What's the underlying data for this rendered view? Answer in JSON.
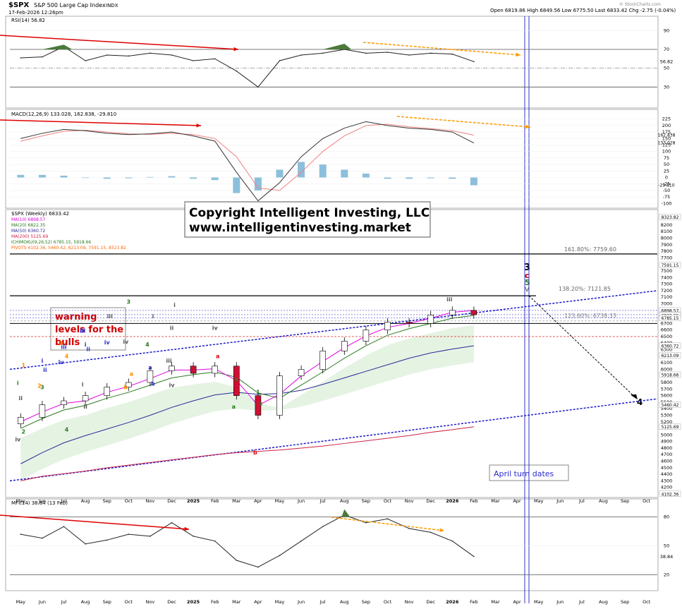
{
  "header": {
    "symbol": "$SPX",
    "name": "S&P 500 Large Cap Index",
    "exchange": "INDX",
    "datetime": "17-Feb-2026 12:26pm",
    "quote": "Open 6819.86  High 6849.56  Low 6775.50  Last 6833.42  Chg -2.75 (-0.04%)",
    "brand": "© StockCharts.com"
  },
  "copyright": {
    "line1": "Copyright Intelligent Investing, LLC",
    "line2": "www.intelligentinvesting.market"
  },
  "annotations": {
    "warning_lines": [
      "warning",
      "levels for the",
      "bulls"
    ],
    "april": "April turn dates",
    "fib_1618": "161.80%: 7759.60",
    "fib_1382": "138.20%: 7121.85",
    "fib_1236": "123.60%: 6738.33",
    "wave_stack": [
      {
        "text": "3",
        "color": "#000000"
      },
      {
        "text": "c",
        "color": "#d40000"
      },
      {
        "text": "5",
        "color": "#2a7a1e"
      },
      {
        "text": "v",
        "color": "#555555"
      }
    ],
    "wave_four": "4"
  },
  "colors": {
    "price_up": "#ffffff",
    "price_down": "#cc1133",
    "ma10": "#e000e0",
    "ma20": "#2a7a1e",
    "ma50": "#2a2a9a",
    "ma200": "#cc2244",
    "cloud": "#dff0dc",
    "channel": "#1a1acc",
    "trend": "#e00000",
    "diverge": "#ff9900",
    "vline": "#3333cc",
    "macd_hist": "#8cbfdc",
    "macd_signal": "#f08080"
  },
  "chart_data": [
    {
      "type": "line",
      "panel": "rsi",
      "title": "RSI(14) 56.82",
      "y_ticks": [
        90,
        70,
        50,
        30
      ],
      "reference_levels": [
        70,
        30
      ],
      "last_label": "56.82",
      "x": [
        "May",
        "Jun",
        "Jul",
        "Aug",
        "Sep",
        "Oct",
        "Nov",
        "Dec",
        "2025",
        "Feb",
        "Mar",
        "Apr",
        "May",
        "Jun",
        "Jul",
        "Aug",
        "Sep",
        "Oct",
        "Nov",
        "Dec",
        "2026",
        "Feb"
      ],
      "values": [
        61,
        62,
        73,
        58,
        64,
        63,
        66,
        64,
        58,
        60,
        47,
        30,
        58,
        64,
        66,
        70,
        66,
        67,
        64,
        66,
        65,
        57
      ]
    },
    {
      "type": "line",
      "panel": "macd",
      "title": "MACD(12,26,9) 133.028, 162.838, -29.810",
      "y_ticks": [
        225,
        200,
        175,
        150,
        125,
        100,
        75,
        50,
        25,
        0,
        -25,
        -50,
        -75,
        -100
      ],
      "last_labels": [
        "162.838",
        "133.028",
        "-29.810"
      ],
      "series": [
        {
          "name": "MACD(12,26,9)",
          "values": [
            150,
            170,
            185,
            180,
            170,
            165,
            168,
            175,
            160,
            140,
            20,
            -90,
            -20,
            80,
            150,
            190,
            215,
            200,
            190,
            185,
            175,
            133
          ]
        },
        {
          "name": "Signal",
          "values": [
            140,
            160,
            178,
            182,
            175,
            168,
            166,
            170,
            165,
            150,
            80,
            -40,
            -50,
            20,
            100,
            160,
            200,
            205,
            195,
            188,
            180,
            163
          ]
        },
        {
          "name": "Histogram",
          "values": [
            10,
            10,
            7,
            -2,
            -5,
            -3,
            2,
            5,
            -5,
            -10,
            -60,
            -50,
            30,
            60,
            50,
            30,
            15,
            -5,
            -5,
            -3,
            -5,
            -30
          ]
        }
      ]
    },
    {
      "type": "bar",
      "panel": "price",
      "title": "$SPX (Weekly) 6833.42",
      "legend": [
        {
          "name": "MA(10) 6898.57",
          "color": "#e000e0"
        },
        {
          "name": "MA(20) 6822.35",
          "color": "#2a7a1e"
        },
        {
          "name": "MA(50) 6360.72",
          "color": "#2a2a9a"
        },
        {
          "name": "MA(200) 5125.69",
          "color": "#cc2244"
        },
        {
          "name": "ICHIMOKU(9,26,52) 6785.15, 5918.66",
          "color": "#2a7a1e"
        },
        {
          "name": "PIVOTS 4102.36, 5460.42, 6213.09, 7591.15, 8323.82",
          "color": "#ff6600"
        }
      ],
      "y_ticks": [
        8300,
        8200,
        8100,
        8000,
        7900,
        7800,
        7700,
        7600,
        7500,
        7400,
        7300,
        7200,
        7100,
        7000,
        6900,
        6800,
        6700,
        6600,
        6500,
        6400,
        6300,
        6200,
        6100,
        6000,
        5900,
        5800,
        5700,
        5600,
        5500,
        5400,
        5300,
        5200,
        5100,
        5000,
        4900,
        4800,
        4700,
        4600,
        4500,
        4400,
        4300,
        4200
      ],
      "right_labels": [
        "8323.82",
        "7591.15",
        "6898.57",
        "6833.42",
        "6822.35",
        "6785.15",
        "6360.72",
        "6213.09",
        "5918.66",
        "5460.42",
        "5125.69",
        "4102.36"
      ],
      "ylim": [
        4100,
        8350
      ],
      "x": [
        "May",
        "Jun",
        "Jul",
        "Aug",
        "Sep",
        "Oct",
        "Nov",
        "Dec",
        "2025",
        "Feb",
        "Mar",
        "Apr",
        "May",
        "Jun",
        "Jul",
        "Aug",
        "Sep",
        "Oct",
        "Nov",
        "Dec",
        "2026",
        "Feb"
      ],
      "close": [
        5270,
        5460,
        5520,
        5600,
        5730,
        5800,
        5980,
        6050,
        5940,
        6050,
        5600,
        5300,
        5900,
        6000,
        6280,
        6430,
        6600,
        6720,
        6700,
        6830,
        6900,
        6833
      ],
      "ma10": [
        5200,
        5350,
        5480,
        5520,
        5650,
        5740,
        5860,
        5990,
        5990,
        6010,
        5830,
        5450,
        5620,
        5900,
        6120,
        6330,
        6510,
        6640,
        6700,
        6780,
        6870,
        6898
      ],
      "ma20": [
        5100,
        5250,
        5380,
        5450,
        5560,
        5650,
        5760,
        5870,
        5920,
        5960,
        5880,
        5640,
        5560,
        5760,
        5960,
        6170,
        6360,
        6520,
        6620,
        6700,
        6780,
        6822
      ],
      "ma50": [
        4560,
        4730,
        4880,
        4990,
        5090,
        5190,
        5300,
        5420,
        5520,
        5610,
        5650,
        5620,
        5630,
        5680,
        5770,
        5870,
        5970,
        6070,
        6170,
        6250,
        6310,
        6360
      ],
      "ma200": [
        4300,
        4370,
        4410,
        4450,
        4500,
        4540,
        4580,
        4620,
        4660,
        4700,
        4730,
        4750,
        4770,
        4800,
        4830,
        4870,
        4910,
        4950,
        4990,
        5040,
        5080,
        5125
      ],
      "wave_labels": [
        {
          "text": "iv",
          "x": "May",
          "y": 4900,
          "color": "#555555"
        },
        {
          "text": "3",
          "x": "Jun",
          "y": 5700,
          "color": "#2a7a1e"
        },
        {
          "text": "4",
          "x": "Jul",
          "y": 5050,
          "color": "#2a7a1e"
        },
        {
          "text": "i",
          "x": "Aug",
          "y": 5740,
          "color": "#555555"
        },
        {
          "text": "ii",
          "x": "Aug",
          "y": 5400,
          "color": "#555555"
        },
        {
          "text": "a",
          "x": "Oct",
          "y": 5900,
          "color": "#ff8c00"
        },
        {
          "text": "b",
          "x": "Oct",
          "y": 5700,
          "color": "#ff8c00"
        },
        {
          "text": "a",
          "x": "Nov",
          "y": 6000,
          "color": "#2a2ad0"
        },
        {
          "text": "b",
          "x": "Nov",
          "y": 5750,
          "color": "#2a2ad0"
        },
        {
          "text": "iii",
          "x": "Dec",
          "y": 6100,
          "color": "#555555"
        },
        {
          "text": "iv",
          "x": "Dec",
          "y": 5730,
          "color": "#555555"
        },
        {
          "text": "a",
          "x": "Feb",
          "y": 6170,
          "color": "#d40000"
        },
        {
          "text": "a",
          "x": "Mar",
          "y": 5400,
          "color": "#2a7a1e"
        },
        {
          "text": "b",
          "x": "Mar",
          "y": 5820,
          "color": "#2a7a1e"
        },
        {
          "text": "c",
          "x": "Apr",
          "y": 5450,
          "color": "#2a7a1e"
        },
        {
          "text": "b",
          "x": "Apr",
          "y": 4700,
          "color": "#d40000"
        },
        {
          "text": "1",
          "x": "Apr",
          "y": 5620,
          "color": "#2a7a1e"
        },
        {
          "text": "2",
          "x": "May",
          "y": 5020,
          "color": "#2a7a1e"
        },
        {
          "text": "i",
          "x": "May",
          "y": 5760,
          "color": "#2a7a1e"
        },
        {
          "text": "ii",
          "x": "May",
          "y": 5530,
          "color": "#555555"
        },
        {
          "text": "1",
          "x": "May",
          "y": 6030,
          "color": "#ff8c00"
        },
        {
          "text": "2",
          "x": "Jun",
          "y": 5720,
          "color": "#ff8c00"
        },
        {
          "text": "i",
          "x": "Jun",
          "y": 6100,
          "color": "#2a2ad0"
        },
        {
          "text": "ii",
          "x": "Jun",
          "y": 5960,
          "color": "#2a2ad0"
        },
        {
          "text": "3",
          "x": "Jul",
          "y": 6370,
          "color": "#ff8c00"
        },
        {
          "text": "iii",
          "x": "Jul",
          "y": 6310,
          "color": "#2a2ad0"
        },
        {
          "text": "4",
          "x": "Jul",
          "y": 6170,
          "color": "#ff8c00"
        },
        {
          "text": "iv",
          "x": "Jul",
          "y": 6080,
          "color": "#2a2ad0"
        },
        {
          "text": "i",
          "x": "Aug",
          "y": 6350,
          "color": "#2a2ad0"
        },
        {
          "text": "ii",
          "x": "Aug",
          "y": 6280,
          "color": "#2a2ad0"
        },
        {
          "text": "iii",
          "x": "Aug",
          "y": 6560,
          "color": "#2a2ad0"
        },
        {
          "text": "iv",
          "x": "Sep",
          "y": 6380,
          "color": "#2a2ad0"
        },
        {
          "text": "iii",
          "x": "Sep",
          "y": 6780,
          "color": "#555555"
        },
        {
          "text": "iv",
          "x": "Oct",
          "y": 6390,
          "color": "#555555"
        },
        {
          "text": "3",
          "x": "Oct",
          "y": 7000,
          "color": "#2a7a1e"
        },
        {
          "text": "i",
          "x": "Nov",
          "y": 6780,
          "color": "#555555"
        },
        {
          "text": "4",
          "x": "Nov",
          "y": 6350,
          "color": "#2a7a1e"
        },
        {
          "text": "ii",
          "x": "Dec",
          "y": 6600,
          "color": "#555555"
        },
        {
          "text": "i",
          "x": "Dec",
          "y": 6950,
          "color": "#555555"
        },
        {
          "text": "iii",
          "x": "2026",
          "y": 7040,
          "color": "#555555"
        },
        {
          "text": "iv",
          "x": "Feb",
          "y": 6600,
          "color": "#555555"
        }
      ]
    },
    {
      "type": "line",
      "panel": "mfi",
      "title": "MFI(14) 38.84 (13 Feb)",
      "y_ticks": [
        80,
        50,
        20
      ],
      "reference_levels": [
        80,
        20
      ],
      "last_label": "38.84",
      "x": [
        "May",
        "Jun",
        "Jul",
        "Aug",
        "Sep",
        "Oct",
        "Nov",
        "Dec",
        "2025",
        "Feb",
        "Mar",
        "Apr",
        "May",
        "Jun",
        "Jul",
        "Aug",
        "Sep",
        "Oct",
        "Nov",
        "Dec",
        "2026",
        "Feb"
      ],
      "values": [
        62,
        58,
        70,
        52,
        56,
        62,
        60,
        74,
        60,
        55,
        35,
        28,
        40,
        55,
        70,
        82,
        74,
        78,
        68,
        64,
        55,
        39
      ]
    }
  ],
  "x_axis_labels": [
    "May",
    "Jun",
    "Jul",
    "Aug",
    "Sep",
    "Oct",
    "Nov",
    "Dec",
    "2025",
    "Feb",
    "Mar",
    "Apr",
    "May",
    "Jun",
    "Jul",
    "Aug",
    "Sep",
    "Oct",
    "Nov",
    "Dec",
    "2026",
    "Feb",
    "Mar",
    "Apr",
    "May",
    "Jun",
    "Jul",
    "Aug",
    "Sep",
    "Oct"
  ]
}
